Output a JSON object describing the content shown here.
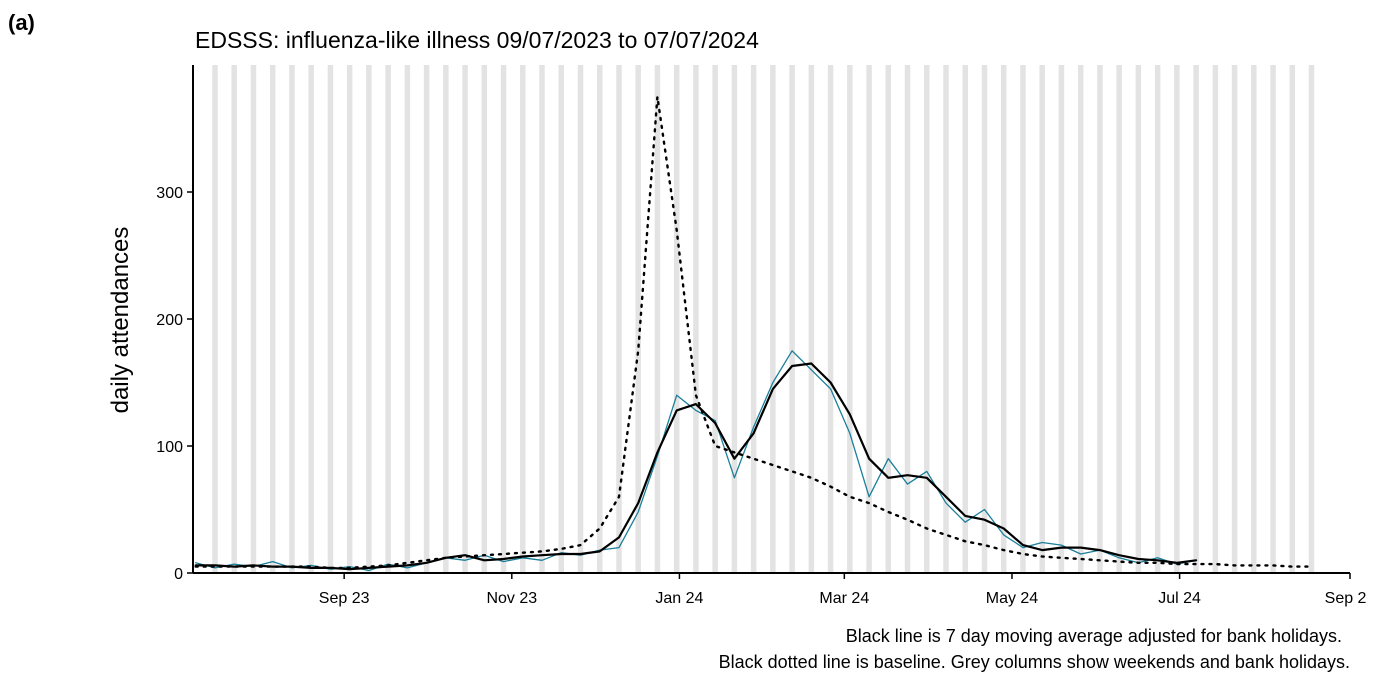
{
  "panel_label": "(a)",
  "chart_data": {
    "type": "line",
    "title": "EDSSS: influenza-like illness 09/07/2023 to 07/07/2024",
    "ylabel": "daily attendances",
    "notes": [
      "Black line is 7 day moving average adjusted for bank holidays.",
      "Black dotted line is baseline. Grey columns show weekends and bank holidays."
    ],
    "x": [
      "2023-07-09",
      "2023-07-16",
      "2023-07-23",
      "2023-07-30",
      "2023-08-06",
      "2023-08-13",
      "2023-08-20",
      "2023-08-27",
      "2023-09-03",
      "2023-09-10",
      "2023-09-17",
      "2023-09-24",
      "2023-10-01",
      "2023-10-08",
      "2023-10-15",
      "2023-10-22",
      "2023-10-29",
      "2023-11-05",
      "2023-11-12",
      "2023-11-19",
      "2023-11-26",
      "2023-12-03",
      "2023-12-10",
      "2023-12-17",
      "2023-12-24",
      "2023-12-31",
      "2024-01-07",
      "2024-01-14",
      "2024-01-21",
      "2024-01-28",
      "2024-02-04",
      "2024-02-11",
      "2024-02-18",
      "2024-02-25",
      "2024-03-03",
      "2024-03-10",
      "2024-03-17",
      "2024-03-24",
      "2024-03-31",
      "2024-04-07",
      "2024-04-14",
      "2024-04-21",
      "2024-04-28",
      "2024-05-05",
      "2024-05-12",
      "2024-05-19",
      "2024-05-26",
      "2024-06-02",
      "2024-06-09",
      "2024-06-16",
      "2024-06-23",
      "2024-06-30",
      "2024-07-07",
      "2024-07-14",
      "2024-07-21",
      "2024-07-28",
      "2024-08-04",
      "2024-08-11",
      "2024-08-18"
    ],
    "series": [
      {
        "name": "daily",
        "color": "#1a7f9a",
        "style": "solid",
        "width": 1.3,
        "values": [
          8,
          4,
          7,
          5,
          9,
          4,
          6,
          3,
          5,
          2,
          7,
          4,
          8,
          12,
          10,
          14,
          9,
          12,
          10,
          16,
          14,
          18,
          20,
          48,
          92,
          140,
          128,
          120,
          75,
          115,
          150,
          175,
          160,
          145,
          110,
          60,
          90,
          70,
          80,
          55,
          40,
          50,
          30,
          20,
          24,
          22,
          15,
          18,
          12,
          8,
          12,
          7,
          10,
          null,
          null,
          null,
          null,
          null,
          null
        ]
      },
      {
        "name": "average",
        "color": "#000000",
        "style": "solid",
        "width": 2.2,
        "values": [
          6,
          6,
          5,
          6,
          5,
          5,
          4,
          4,
          3,
          4,
          5,
          6,
          8,
          12,
          14,
          10,
          11,
          13,
          14,
          15,
          15,
          17,
          28,
          55,
          95,
          128,
          133,
          118,
          90,
          110,
          145,
          163,
          165,
          150,
          125,
          90,
          75,
          77,
          75,
          60,
          45,
          42,
          35,
          22,
          18,
          20,
          20,
          18,
          14,
          11,
          10,
          8,
          10,
          null,
          null,
          null,
          null,
          null,
          null
        ]
      },
      {
        "name": "baseline",
        "color": "#000000",
        "style": "dotted",
        "width": 2.4,
        "values": [
          5,
          5,
          5,
          5,
          5,
          5,
          5,
          4,
          4,
          5,
          6,
          8,
          10,
          12,
          13,
          14,
          15,
          16,
          17,
          19,
          22,
          35,
          60,
          175,
          375,
          270,
          140,
          100,
          95,
          90,
          85,
          80,
          75,
          68,
          60,
          55,
          48,
          42,
          35,
          30,
          25,
          22,
          18,
          15,
          13,
          12,
          11,
          10,
          9,
          8,
          8,
          7,
          7,
          7,
          6,
          6,
          6,
          5,
          5
        ]
      }
    ],
    "xlim": [
      "2023-07-08",
      "2024-09-01"
    ],
    "xticks": [
      {
        "value": "2023-09-01",
        "label": "Sep 23"
      },
      {
        "value": "2023-11-01",
        "label": "Nov 23"
      },
      {
        "value": "2024-01-01",
        "label": "Jan 24"
      },
      {
        "value": "2024-03-01",
        "label": "Mar 24"
      },
      {
        "value": "2024-05-01",
        "label": "May 24"
      },
      {
        "value": "2024-07-01",
        "label": "Jul 24"
      },
      {
        "value": "2024-09-01",
        "label": "Sep 24"
      }
    ],
    "ylim": [
      0,
      400
    ],
    "yticks": [
      0,
      100,
      200,
      300
    ],
    "weekend_color": "#e3e3e3"
  }
}
